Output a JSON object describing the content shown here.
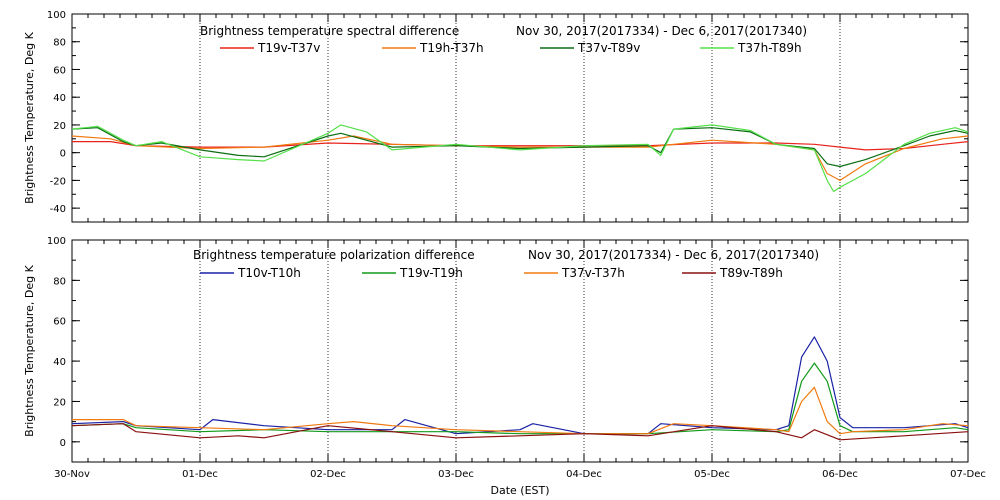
{
  "chart_data": [
    {
      "type": "line",
      "title": "Brightness temperature spectral difference",
      "date_range": "Nov 30, 2017(2017334)  -  Dec  6, 2017(2017340)",
      "ylabel": "Brightness Temperature, Deg K",
      "xlabel": "",
      "ylim": [
        -50,
        100
      ],
      "yticks": [
        "-40",
        "-20",
        "0",
        "20",
        "40",
        "60",
        "80",
        "100"
      ],
      "xlim": [
        0,
        7
      ],
      "grid": "vertical dotted at day boundaries",
      "legend_placement": "top",
      "series": [
        {
          "name": "T19v-T37v",
          "color": "#e8231c",
          "x": [
            0,
            0.3,
            0.5,
            1.0,
            1.5,
            2.0,
            2.5,
            3.0,
            3.5,
            4.0,
            4.5,
            5.0,
            5.5,
            5.8,
            6.0,
            6.2,
            6.5,
            6.8,
            7.0
          ],
          "y": [
            8,
            8,
            5,
            4,
            4,
            7,
            6,
            5,
            5,
            5,
            5,
            7,
            7,
            6,
            4,
            2,
            3,
            6,
            8
          ]
        },
        {
          "name": "T19h-T37h",
          "color": "#f07a10",
          "x": [
            0,
            0.3,
            0.5,
            1.0,
            1.5,
            2.0,
            2.2,
            2.5,
            3.0,
            3.5,
            4.0,
            4.5,
            5.0,
            5.5,
            5.8,
            5.9,
            6.0,
            6.2,
            6.5,
            6.8,
            7.0
          ],
          "y": [
            12,
            10,
            5,
            3,
            4,
            9,
            12,
            6,
            5,
            4,
            4,
            4,
            9,
            6,
            2,
            -15,
            -20,
            -8,
            3,
            10,
            12
          ]
        },
        {
          "name": "T37v-T89v",
          "color": "#0b6e12",
          "x": [
            0,
            0.2,
            0.4,
            0.5,
            0.7,
            1.0,
            1.3,
            1.5,
            2.0,
            2.1,
            2.5,
            3.0,
            3.5,
            4.0,
            4.5,
            4.6,
            4.7,
            5.0,
            5.3,
            5.5,
            5.8,
            5.9,
            6.0,
            6.2,
            6.5,
            6.7,
            6.9,
            7.0
          ],
          "y": [
            17,
            18,
            8,
            5,
            7,
            2,
            -2,
            -3,
            12,
            14,
            4,
            5,
            3,
            4,
            5,
            0,
            17,
            18,
            15,
            6,
            3,
            -8,
            -10,
            -5,
            5,
            12,
            16,
            14
          ]
        },
        {
          "name": "T37h-T89h",
          "color": "#55e04a",
          "x": [
            0,
            0.2,
            0.4,
            0.5,
            0.7,
            1.0,
            1.3,
            1.5,
            2.0,
            2.1,
            2.3,
            2.5,
            3.0,
            3.5,
            4.0,
            4.5,
            4.6,
            4.7,
            5.0,
            5.3,
            5.5,
            5.8,
            5.9,
            5.95,
            6.0,
            6.2,
            6.5,
            6.7,
            6.9,
            7.0
          ],
          "y": [
            17,
            19,
            9,
            5,
            8,
            -3,
            -5,
            -6,
            14,
            20,
            15,
            2,
            6,
            2,
            5,
            6,
            -2,
            17,
            20,
            16,
            6,
            2,
            -20,
            -28,
            -25,
            -15,
            6,
            14,
            18,
            15
          ]
        }
      ]
    },
    {
      "type": "line",
      "title": "Brightness temperature polarization difference",
      "date_range": "Nov 30, 2017(2017334)  -  Dec  6, 2017(2017340)",
      "ylabel": "Brightness Temperature, Deg K",
      "xlabel": "Date (EST)",
      "ylim": [
        -10,
        100
      ],
      "yticks": [
        "0",
        "20",
        "40",
        "60",
        "80",
        "100"
      ],
      "xlim": [
        0,
        7
      ],
      "xticks": [
        "30-Nov",
        "01-Dec",
        "02-Dec",
        "03-Dec",
        "04-Dec",
        "05-Dec",
        "06-Dec",
        "07-Dec"
      ],
      "grid": "vertical dotted at day boundaries",
      "legend_placement": "top",
      "series": [
        {
          "name": "T10v-T10h",
          "color": "#1a22a6",
          "x": [
            0,
            0.4,
            0.5,
            1.0,
            1.1,
            1.5,
            2.0,
            2.5,
            2.6,
            3.0,
            3.5,
            3.6,
            4.0,
            4.5,
            4.6,
            5.0,
            5.5,
            5.6,
            5.7,
            5.8,
            5.9,
            6.0,
            6.1,
            6.5,
            6.7,
            6.9,
            7.0
          ],
          "y": [
            9,
            10,
            8,
            6,
            11,
            8,
            6,
            6,
            11,
            4,
            6,
            9,
            4,
            4,
            9,
            7,
            6,
            8,
            42,
            52,
            40,
            12,
            7,
            7,
            8,
            9,
            7
          ]
        },
        {
          "name": "T19v-T19h",
          "color": "#139a1a",
          "x": [
            0,
            0.4,
            0.5,
            1.0,
            1.5,
            2.0,
            2.5,
            3.0,
            3.5,
            4.0,
            4.5,
            5.0,
            5.5,
            5.6,
            5.7,
            5.8,
            5.9,
            6.0,
            6.1,
            6.5,
            6.9,
            7.0
          ],
          "y": [
            8,
            9,
            7,
            5,
            6,
            5,
            5,
            5,
            4,
            4,
            4,
            6,
            5,
            6,
            30,
            39,
            30,
            8,
            5,
            5,
            7,
            6
          ]
        },
        {
          "name": "T37v-T37h",
          "color": "#f07a10",
          "x": [
            0,
            0.4,
            0.5,
            1.0,
            1.5,
            2.0,
            2.2,
            2.5,
            3.0,
            3.5,
            4.0,
            4.5,
            4.7,
            5.0,
            5.5,
            5.6,
            5.7,
            5.8,
            5.9,
            6.0,
            6.1,
            6.5,
            6.8,
            7.0
          ],
          "y": [
            11,
            11,
            8,
            7,
            6,
            9,
            10,
            8,
            6,
            5,
            4,
            4,
            9,
            8,
            6,
            5,
            20,
            27,
            10,
            4,
            5,
            6,
            9,
            8
          ]
        },
        {
          "name": "T89v-T89h",
          "color": "#8a1010",
          "x": [
            0,
            0.4,
            0.5,
            1.0,
            1.3,
            1.5,
            2.0,
            2.5,
            3.0,
            3.5,
            4.0,
            4.5,
            5.0,
            5.5,
            5.7,
            5.8,
            6.0,
            6.5,
            7.0
          ],
          "y": [
            8,
            9,
            5,
            2,
            3,
            2,
            8,
            5,
            2,
            3,
            4,
            3,
            8,
            5,
            2,
            6,
            1,
            3,
            5
          ]
        }
      ]
    }
  ]
}
